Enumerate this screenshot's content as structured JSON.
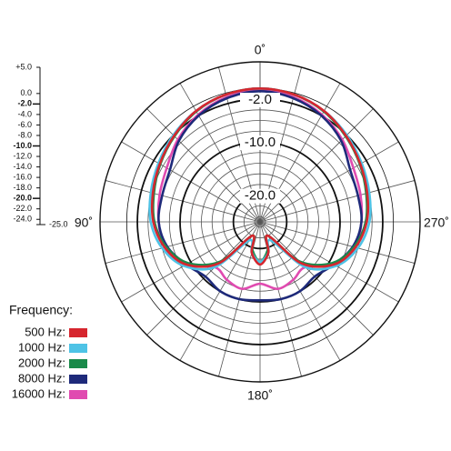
{
  "chart_data": {
    "type": "polar",
    "rlim": [
      -25,
      5
    ],
    "rticks": [
      {
        "value": 5,
        "label": "+5.0"
      },
      {
        "value": 0,
        "label": "0.0"
      },
      {
        "value": -2,
        "label": "-2.0"
      },
      {
        "value": -4,
        "label": "-4.0"
      },
      {
        "value": -6,
        "label": "-6.0"
      },
      {
        "value": -8,
        "label": "-8.0"
      },
      {
        "value": -10,
        "label": "-10.0"
      },
      {
        "value": -12,
        "label": "-12.0"
      },
      {
        "value": -14,
        "label": "-14.0"
      },
      {
        "value": -16,
        "label": "-16.0"
      },
      {
        "value": -18,
        "label": "-18.0"
      },
      {
        "value": -20,
        "label": "-20.0"
      },
      {
        "value": -22,
        "label": "-22.0"
      },
      {
        "value": -24,
        "label": "-24.0"
      },
      {
        "value": -25,
        "label": "-25.0"
      }
    ],
    "major_rticks": [
      {
        "value": -2,
        "label": "-2.0"
      },
      {
        "value": -10,
        "label": "-10.0"
      },
      {
        "value": -20,
        "label": "-20.0"
      }
    ],
    "angle_ticks": [
      {
        "value": 0,
        "label": "0˚"
      },
      {
        "value": 90,
        "label": "90˚"
      },
      {
        "value": 180,
        "label": "180˚"
      },
      {
        "value": 270,
        "label": "270˚"
      }
    ],
    "legend_title": "Frequency:",
    "angles": [
      0,
      15,
      30,
      45,
      60,
      75,
      90,
      105,
      120,
      135,
      150,
      165,
      180,
      195,
      210,
      225,
      240,
      255,
      270,
      285,
      300,
      315,
      330,
      345,
      360
    ],
    "series": [
      {
        "name": "500 Hz:",
        "color": "#d6262e",
        "values": [
          0,
          -0.3,
          -1,
          -2.2,
          -3.3,
          -4.2,
          -5,
          -6.5,
          -9,
          -14,
          -22,
          -19,
          -17,
          -19,
          -22,
          -14,
          -9,
          -6.5,
          -5,
          -4.2,
          -3.3,
          -2.2,
          -1,
          -0.3,
          0
        ]
      },
      {
        "name": "1000 Hz:",
        "color": "#4ec3e6",
        "values": [
          0,
          -0.3,
          -1,
          -2,
          -3,
          -3.8,
          -4.5,
          -6,
          -8.5,
          -13,
          -21,
          -19,
          -17.5,
          -19,
          -21,
          -13,
          -8.5,
          -6,
          -4.5,
          -3.8,
          -3,
          -2,
          -1,
          -0.3,
          0
        ]
      },
      {
        "name": "2000 Hz:",
        "color": "#1a8a4a",
        "values": [
          0,
          -0.3,
          -1.1,
          -2.3,
          -3.4,
          -4.4,
          -5.2,
          -6.8,
          -9.5,
          -14.5,
          -22,
          -19.5,
          -17.5,
          -19.5,
          -22,
          -14.5,
          -9.5,
          -6.8,
          -5.2,
          -4.4,
          -3.4,
          -2.3,
          -1.1,
          -0.3,
          0
        ]
      },
      {
        "name": "8000 Hz:",
        "color": "#1e2a7a",
        "values": [
          -0.5,
          -1,
          -2,
          -3.5,
          -5.5,
          -6,
          -6,
          -7,
          -9,
          -10.5,
          -10,
          -10,
          -10.3,
          -10,
          -10,
          -10.5,
          -9,
          -7,
          -6,
          -6,
          -5.5,
          -3.5,
          -2,
          -1,
          -0.5
        ]
      },
      {
        "name": "16000 Hz:",
        "color": "#e04bb0",
        "values": [
          -0.3,
          -0.8,
          -1.8,
          -3.2,
          -4.8,
          -5.5,
          -6,
          -6.5,
          -8.8,
          -13,
          -12.5,
          -12,
          -13.4,
          -12,
          -12.5,
          -13,
          -8.8,
          -6.5,
          -6,
          -5.5,
          -4.8,
          -3.2,
          -1.8,
          -0.8,
          -0.3
        ]
      }
    ]
  }
}
